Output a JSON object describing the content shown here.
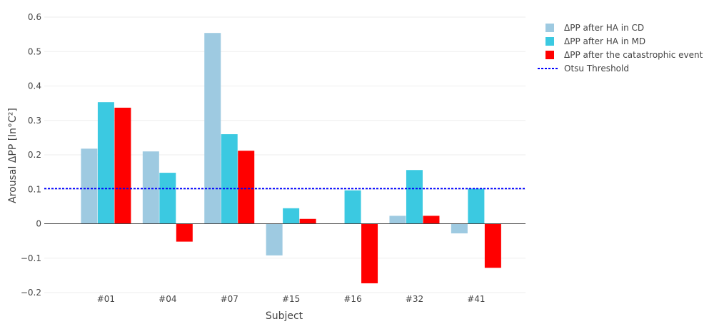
{
  "chart_data": {
    "type": "bar",
    "title": "",
    "xlabel": "Subject",
    "ylabel": "Arousal ΔPP [ln°C²]",
    "categories": [
      "#01",
      "#04",
      "#07",
      "#15",
      "#16",
      "#32",
      "#41"
    ],
    "ylim": [
      -0.2,
      0.6
    ],
    "yticks": [
      "0.6",
      "0.5",
      "0.4",
      "0.3",
      "0.2",
      "0.1",
      "0",
      "−0.1",
      "−0.2"
    ],
    "ytick_values": [
      0.6,
      0.5,
      0.4,
      0.3,
      0.2,
      0.1,
      0,
      -0.1,
      -0.2
    ],
    "grid": true,
    "legend_position": "top-right",
    "series": [
      {
        "name": "ΔPP after HA in CD",
        "color": "#9ecae1",
        "values": [
          0.218,
          0.21,
          0.554,
          -0.092,
          0.0,
          0.023,
          -0.028
        ]
      },
      {
        "name": "ΔPP after HA in MD",
        "color": "#3bc9e1",
        "values": [
          0.353,
          0.148,
          0.26,
          0.045,
          0.097,
          0.156,
          0.102
        ]
      },
      {
        "name": "ΔPP after the catastrophic event",
        "color": "#ff0000",
        "values": [
          0.337,
          -0.052,
          0.212,
          0.014,
          -0.173,
          0.023,
          -0.128
        ]
      }
    ],
    "threshold": {
      "name": "Otsu Threshold",
      "value": 0.102,
      "color": "#0000ff"
    }
  }
}
